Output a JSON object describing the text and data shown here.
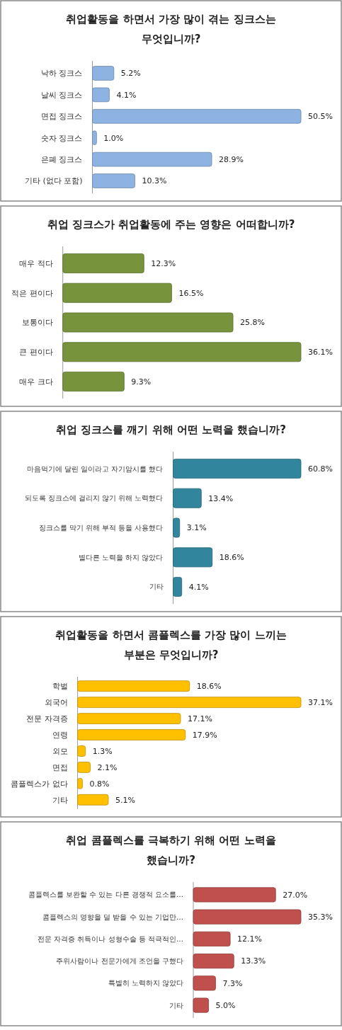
{
  "chart_data": [
    {
      "type": "bar",
      "orientation": "horizontal",
      "title": "취업활동을 하면서 가장 많이 겪는 징크스는 무엇입니까?",
      "categories": [
        "낙하 징크스",
        "날씨 징크스",
        "면접 징크스",
        "숫자 징크스",
        "은폐 징크스",
        "기타 (없다 포함)"
      ],
      "values": [
        5.2,
        4.1,
        50.5,
        1.0,
        28.9,
        10.3
      ],
      "value_labels": [
        "5.2%",
        "4.1%",
        "50.5%",
        "1.0%",
        "28.9%",
        "10.3%"
      ],
      "color": "#8db3e2"
    },
    {
      "type": "bar",
      "orientation": "horizontal",
      "title": "취업 징크스가 취업활동에 주는 영향은 어떠합니까?",
      "categories": [
        "매우 적다",
        "적은 편이다",
        "보통이다",
        "큰 편이다",
        "매우 크다"
      ],
      "values": [
        12.3,
        16.5,
        25.8,
        36.1,
        9.3
      ],
      "value_labels": [
        "12.3%",
        "16.5%",
        "25.8%",
        "36.1%",
        "9.3%"
      ],
      "color": "#77933c"
    },
    {
      "type": "bar",
      "orientation": "horizontal",
      "title": "취업 징크스를 깨기 위해 어떤 노력을 했습니까?",
      "categories": [
        "마음먹기에 달린 일이라고 자기암시를 했다",
        "되도록 징크스에 걸리지 않기 위해 노력했다",
        "징크스를 막기 위해 부적 등을 사용했다",
        "별다른 노력을 하지 않았다",
        "기타"
      ],
      "values": [
        60.8,
        13.4,
        3.1,
        18.6,
        4.1
      ],
      "value_labels": [
        "60.8%",
        "13.4%",
        "3.1%",
        "18.6%",
        "4.1%"
      ],
      "color": "#31859c"
    },
    {
      "type": "bar",
      "orientation": "horizontal",
      "title": "취업활동을 하면서 콤플렉스를 가장 많이 느끼는 부분은 무엇입니까?",
      "categories": [
        "학벌",
        "외국어",
        "전문 자격증",
        "연령",
        "외모",
        "면접",
        "콤플렉스가 없다",
        "기타"
      ],
      "values": [
        18.6,
        37.1,
        17.1,
        17.9,
        1.3,
        2.1,
        0.8,
        5.1
      ],
      "value_labels": [
        "18.6%",
        "37.1%",
        "17.1%",
        "17.9%",
        "1.3%",
        "2.1%",
        "0.8%",
        "5.1%"
      ],
      "color": "#ffc000"
    },
    {
      "type": "bar",
      "orientation": "horizontal",
      "title": "취업 콤플렉스를 극복하기 위해 어떤 노력을 했습니까?",
      "categories": [
        "콤플렉스를 보완할 수 있는 다른 경쟁적 요소를…",
        "콤플렉스의 영향을 덜 받을 수 있는 기업만…",
        "전문 자격증 취득이나 성형수술 등 적극적인…",
        "주위사람이나 전문가에게 조언을 구했다",
        "특별히 노력하지 않았다",
        "기타"
      ],
      "values": [
        27.0,
        35.3,
        12.1,
        13.3,
        7.3,
        5.0
      ],
      "value_labels": [
        "27.0%",
        "35.3%",
        "12.1%",
        "13.3%",
        "7.3%",
        "5.0%"
      ],
      "color": "#c0504d"
    }
  ]
}
